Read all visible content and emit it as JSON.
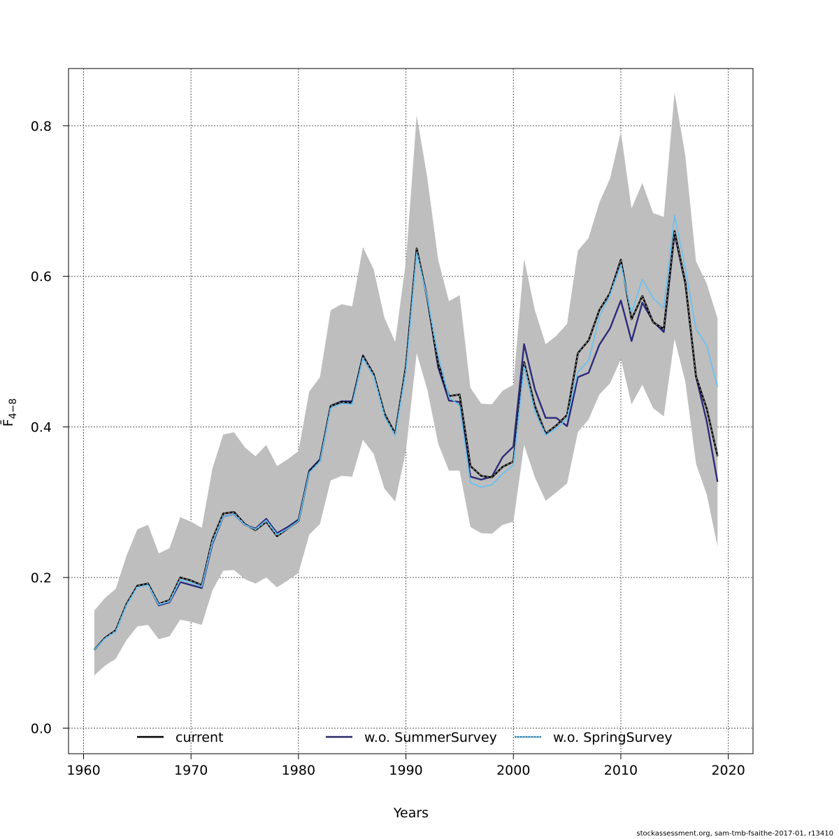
{
  "chart_data": {
    "type": "line",
    "title": "",
    "xlabel": "Years",
    "ylabel": "F̄",
    "ylabel_subscript": "4−8",
    "xlim": [
      1958.6,
      2022.3
    ],
    "ylim": [
      -0.034,
      0.876
    ],
    "xticks": [
      "1960",
      "1970",
      "1980",
      "1990",
      "2000",
      "2010",
      "2020"
    ],
    "yticks": [
      "0.0",
      "0.2",
      "0.4",
      "0.6",
      "0.8"
    ],
    "grid": true,
    "legend_position": "bottom",
    "x": [
      1961,
      1962,
      1963,
      1964,
      1965,
      1966,
      1967,
      1968,
      1969,
      1970,
      1971,
      1972,
      1973,
      1974,
      1975,
      1976,
      1977,
      1978,
      1979,
      1980,
      1981,
      1982,
      1983,
      1984,
      1985,
      1986,
      1987,
      1988,
      1989,
      1990,
      1991,
      1992,
      1993,
      1994,
      1995,
      1996,
      1997,
      1998,
      1999,
      2000,
      2001,
      2002,
      2003,
      2004,
      2005,
      2006,
      2007,
      2008,
      2009,
      2010,
      2011,
      2012,
      2013,
      2014,
      2015,
      2016,
      2017,
      2018,
      2019
    ],
    "confidence_band": {
      "color": "#bebebe",
      "lower": [
        0.07,
        0.083,
        0.092,
        0.117,
        0.135,
        0.137,
        0.118,
        0.122,
        0.144,
        0.141,
        0.137,
        0.183,
        0.209,
        0.21,
        0.198,
        0.192,
        0.2,
        0.187,
        0.196,
        0.206,
        0.257,
        0.271,
        0.329,
        0.335,
        0.334,
        0.383,
        0.364,
        0.318,
        0.301,
        0.368,
        0.498,
        0.449,
        0.378,
        0.342,
        0.342,
        0.267,
        0.259,
        0.258,
        0.27,
        0.274,
        0.376,
        0.333,
        0.302,
        0.313,
        0.325,
        0.393,
        0.41,
        0.443,
        0.458,
        0.49,
        0.43,
        0.456,
        0.425,
        0.414,
        0.517,
        0.46,
        0.351,
        0.31,
        0.241
      ],
      "upper": [
        0.156,
        0.173,
        0.185,
        0.229,
        0.264,
        0.27,
        0.232,
        0.239,
        0.28,
        0.274,
        0.266,
        0.345,
        0.39,
        0.393,
        0.373,
        0.361,
        0.376,
        0.348,
        0.357,
        0.368,
        0.447,
        0.466,
        0.555,
        0.563,
        0.56,
        0.639,
        0.609,
        0.545,
        0.513,
        0.62,
        0.814,
        0.73,
        0.622,
        0.567,
        0.575,
        0.452,
        0.431,
        0.43,
        0.448,
        0.456,
        0.623,
        0.555,
        0.51,
        0.521,
        0.537,
        0.634,
        0.651,
        0.698,
        0.73,
        0.792,
        0.69,
        0.724,
        0.684,
        0.679,
        0.844,
        0.76,
        0.62,
        0.59,
        0.544
      ]
    },
    "series": [
      {
        "name": "current",
        "color": "#000000",
        "style": "solid",
        "values": [
          0.104,
          0.12,
          0.13,
          0.165,
          0.189,
          0.192,
          0.165,
          0.17,
          0.2,
          0.196,
          0.19,
          0.251,
          0.285,
          0.287,
          0.271,
          0.263,
          0.274,
          0.255,
          0.265,
          0.275,
          0.34,
          0.355,
          0.428,
          0.433,
          0.432,
          0.494,
          0.47,
          0.418,
          0.391,
          0.48,
          0.637,
          0.57,
          0.484,
          0.441,
          0.443,
          0.348,
          0.335,
          0.333,
          0.347,
          0.354,
          0.486,
          0.428,
          0.391,
          0.402,
          0.416,
          0.498,
          0.515,
          0.555,
          0.578,
          0.622,
          0.543,
          0.574,
          0.539,
          0.53,
          0.66,
          0.592,
          0.467,
          0.424,
          0.361
        ]
      },
      {
        "name": "w.o. SummerSurvey",
        "color": "#2c2a7a",
        "style": "solid",
        "values": [
          0.104,
          0.12,
          0.129,
          0.164,
          0.188,
          0.191,
          0.163,
          0.167,
          0.194,
          0.19,
          0.186,
          0.245,
          0.281,
          0.284,
          0.27,
          0.265,
          0.278,
          0.259,
          0.267,
          0.277,
          0.342,
          0.357,
          0.428,
          0.434,
          0.434,
          0.495,
          0.47,
          0.416,
          0.391,
          0.481,
          0.636,
          0.57,
          0.479,
          0.435,
          0.433,
          0.334,
          0.33,
          0.334,
          0.36,
          0.374,
          0.51,
          0.45,
          0.412,
          0.412,
          0.401,
          0.466,
          0.472,
          0.509,
          0.531,
          0.568,
          0.514,
          0.565,
          0.54,
          0.526,
          0.657,
          0.59,
          0.467,
          0.407,
          0.327
        ]
      },
      {
        "name": "w.o. SpringSurvey",
        "color": "#6cc0ee",
        "style": "solid",
        "values": [
          0.104,
          0.119,
          0.128,
          0.163,
          0.187,
          0.19,
          0.164,
          0.168,
          0.197,
          0.193,
          0.188,
          0.247,
          0.281,
          0.284,
          0.27,
          0.264,
          0.276,
          0.257,
          0.265,
          0.275,
          0.339,
          0.354,
          0.425,
          0.431,
          0.43,
          0.491,
          0.467,
          0.414,
          0.388,
          0.474,
          0.63,
          0.571,
          0.495,
          0.44,
          0.428,
          0.326,
          0.32,
          0.323,
          0.338,
          0.349,
          0.48,
          0.42,
          0.389,
          0.398,
          0.411,
          0.473,
          0.488,
          0.546,
          0.575,
          0.615,
          0.552,
          0.596,
          0.571,
          0.558,
          0.681,
          0.61,
          0.53,
          0.508,
          0.453
        ]
      }
    ]
  },
  "footer": "stockassessment.org, sam-tmb-fsaithe-2017-01, r13410"
}
